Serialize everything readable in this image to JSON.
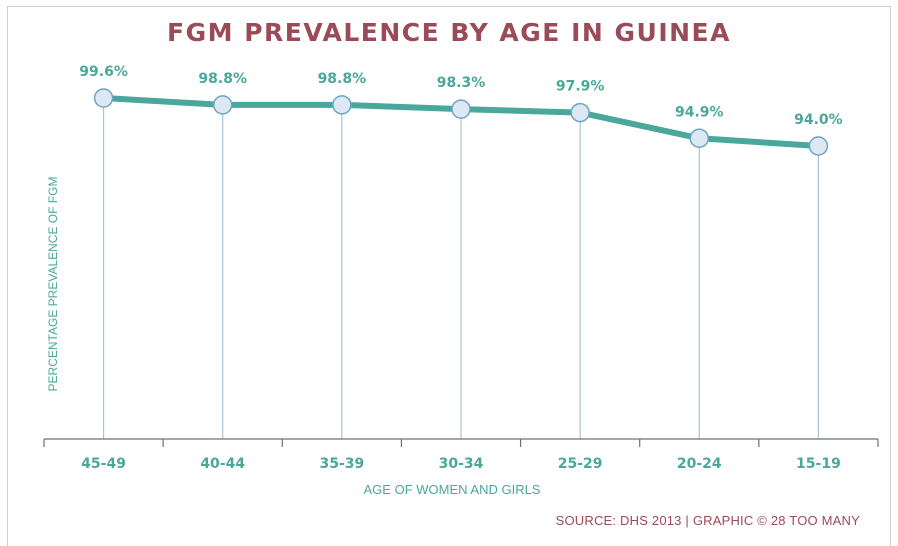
{
  "chart_data": {
    "type": "line",
    "title": "FGM PREVALENCE BY AGE IN GUINEA",
    "xlabel": "AGE OF WOMEN AND GIRLS",
    "ylabel": "PERCENTAGE PREVALENCE OF FGM",
    "categories": [
      "45-49",
      "40-44",
      "35-39",
      "30-34",
      "25-29",
      "20-24",
      "15-19"
    ],
    "values": [
      99.6,
      98.8,
      98.8,
      98.3,
      97.9,
      94.9,
      94.0
    ],
    "data_labels": [
      "99.6%",
      "98.8%",
      "98.8%",
      "98.3%",
      "97.9%",
      "94.9%",
      "94.0%"
    ],
    "ylim": [
      70,
      100.5
    ],
    "grid": "vertical drop lines",
    "legend": "none",
    "colors": {
      "line": "#4aa79b",
      "marker_fill": "#dce9f5",
      "marker_stroke": "#6fa3c4",
      "drop_line": "#a9c4d9",
      "axis": "#707070",
      "title": "#9b4b57",
      "text": "#4aa79b"
    }
  },
  "footer": {
    "source": "SOURCE: DHS 2013 | GRAPHIC © 28 TOO MANY"
  }
}
